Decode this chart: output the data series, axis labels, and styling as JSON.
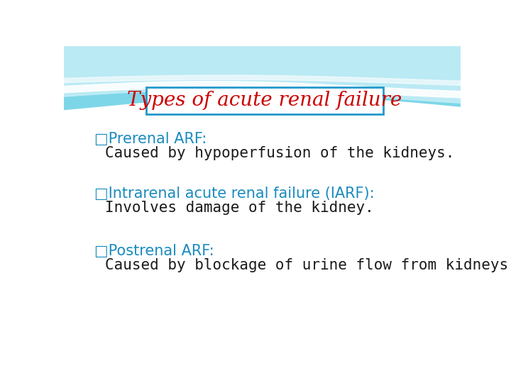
{
  "title": "Types of acute renal failure",
  "title_color": "#cc0000",
  "title_fontsize": 20,
  "title_box_edgecolor": "#2299cc",
  "background_color": "#ffffff",
  "heading_color": "#1a8bbf",
  "heading_fontsize": 15,
  "body_color": "#1a1a1a",
  "body_fontsize": 15,
  "items": [
    {
      "heading": "□Prerenal ARF:",
      "body": "Caused by hypoperfusion of the kidneys."
    },
    {
      "heading": "□Intrarenal acute renal failure (IARF):",
      "body": "Involves damage of the kidney."
    },
    {
      "heading": "□Postrenal ARF:",
      "body": "Caused by blockage of urine flow from kidneys."
    }
  ],
  "wave_main_color": "#7dd6e8",
  "wave_light_color": "#c5eef7",
  "wave_white_color": "#ffffff"
}
